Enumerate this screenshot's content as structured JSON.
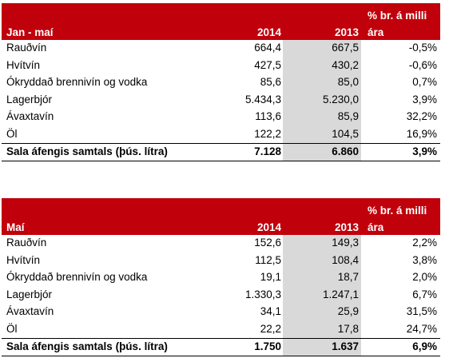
{
  "tables": [
    {
      "period": "Jan - maí",
      "col_2014": "2014",
      "col_2013": "2013",
      "col_pct_line1": "% br. á milli",
      "col_pct_line2": "ára",
      "rows": [
        {
          "label": "Rauðvín",
          "v2014": "664,4",
          "v2013": "667,5",
          "pct": "-0,5%"
        },
        {
          "label": "Hvítvín",
          "v2014": "427,5",
          "v2013": "430,2",
          "pct": "-0,6%"
        },
        {
          "label": "Ókryddað brennivín og vodka",
          "v2014": "85,6",
          "v2013": "85,0",
          "pct": "0,7%"
        },
        {
          "label": "Lagerbjór",
          "v2014": "5.434,3",
          "v2013": "5.230,0",
          "pct": "3,9%"
        },
        {
          "label": "Ávaxtavín",
          "v2014": "113,6",
          "v2013": "85,9",
          "pct": "32,2%"
        },
        {
          "label": "Öl",
          "v2014": "122,2",
          "v2013": "104,5",
          "pct": "16,9%"
        }
      ],
      "total": {
        "label": "Sala áfengis samtals (þús. lítra)",
        "v2014": "7.128",
        "v2013": "6.860",
        "pct": "3,9%"
      }
    },
    {
      "period": "Maí",
      "col_2014": "2014",
      "col_2013": "2013",
      "col_pct_line1": "% br. á milli",
      "col_pct_line2": "ára",
      "rows": [
        {
          "label": "Rauðvín",
          "v2014": "152,6",
          "v2013": "149,3",
          "pct": "2,2%"
        },
        {
          "label": "Hvítvín",
          "v2014": "112,5",
          "v2013": "108,4",
          "pct": "3,8%"
        },
        {
          "label": "Ókryddað brennivín og vodka",
          "v2014": "19,1",
          "v2013": "18,7",
          "pct": "2,0%"
        },
        {
          "label": "Lagerbjór",
          "v2014": "1.330,3",
          "v2013": "1.247,1",
          "pct": "6,7%"
        },
        {
          "label": "Ávaxtavín",
          "v2014": "34,1",
          "v2013": "25,9",
          "pct": "31,5%"
        },
        {
          "label": "Öl",
          "v2014": "22,2",
          "v2013": "17,8",
          "pct": "24,7%"
        }
      ],
      "total": {
        "label": "Sala áfengis samtals (þús. lítra)",
        "v2014": "1.750",
        "v2013": "1.637",
        "pct": "6,9%"
      }
    }
  ]
}
